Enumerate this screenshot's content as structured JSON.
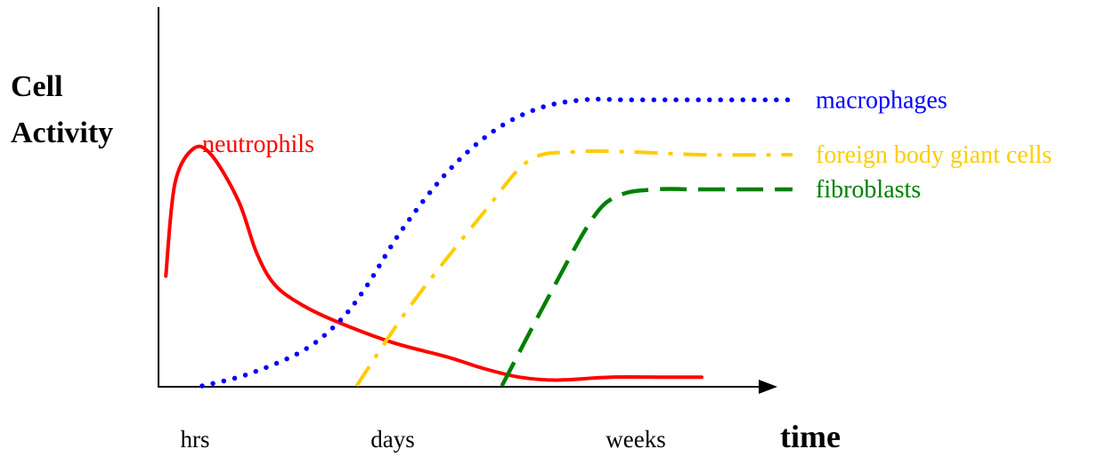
{
  "chart_data": {
    "type": "line",
    "title": "",
    "ylabel_lines": [
      "Cell",
      "Activity"
    ],
    "xlabel": "time",
    "x_ticks": [
      "hrs",
      "days",
      "weeks"
    ],
    "grid": false,
    "legend": "inline labels at line ends",
    "series": [
      {
        "name": "neutrophils",
        "color": "#ff0000",
        "style": "solid",
        "x": [
          0.05,
          0.1,
          0.2,
          0.3,
          0.45,
          0.55,
          0.65,
          0.8,
          1.0,
          1.3,
          1.6,
          1.8,
          2.0,
          2.2,
          2.5,
          2.8,
          3.0
        ],
        "y": [
          0.38,
          0.7,
          0.82,
          0.8,
          0.64,
          0.46,
          0.35,
          0.28,
          0.22,
          0.15,
          0.1,
          0.06,
          0.03,
          0.02,
          0.03,
          0.03,
          0.03
        ]
      },
      {
        "name": "macrophages",
        "color": "#0000ff",
        "style": "dotted",
        "x": [
          0.25,
          0.5,
          0.8,
          1.0,
          1.15,
          1.35,
          1.6,
          1.85,
          2.1,
          2.35,
          2.6,
          3.0,
          3.5
        ],
        "y": [
          0.0,
          0.04,
          0.12,
          0.22,
          0.34,
          0.54,
          0.74,
          0.88,
          0.96,
          0.99,
          0.99,
          0.99,
          0.99
        ]
      },
      {
        "name": "foreign body giant cells",
        "color": "#ffcc00",
        "style": "dashdot",
        "x": [
          1.1,
          1.4,
          1.8,
          2.05,
          2.3,
          2.6,
          3.0,
          3.5
        ],
        "y": [
          0.0,
          0.28,
          0.6,
          0.78,
          0.81,
          0.81,
          0.8,
          0.8
        ]
      },
      {
        "name": "fibroblasts",
        "color": "#008000",
        "style": "dashed",
        "x": [
          1.9,
          2.15,
          2.4,
          2.55,
          2.75,
          3.0,
          3.5
        ],
        "y": [
          0.0,
          0.3,
          0.58,
          0.66,
          0.68,
          0.68,
          0.68
        ]
      }
    ]
  }
}
